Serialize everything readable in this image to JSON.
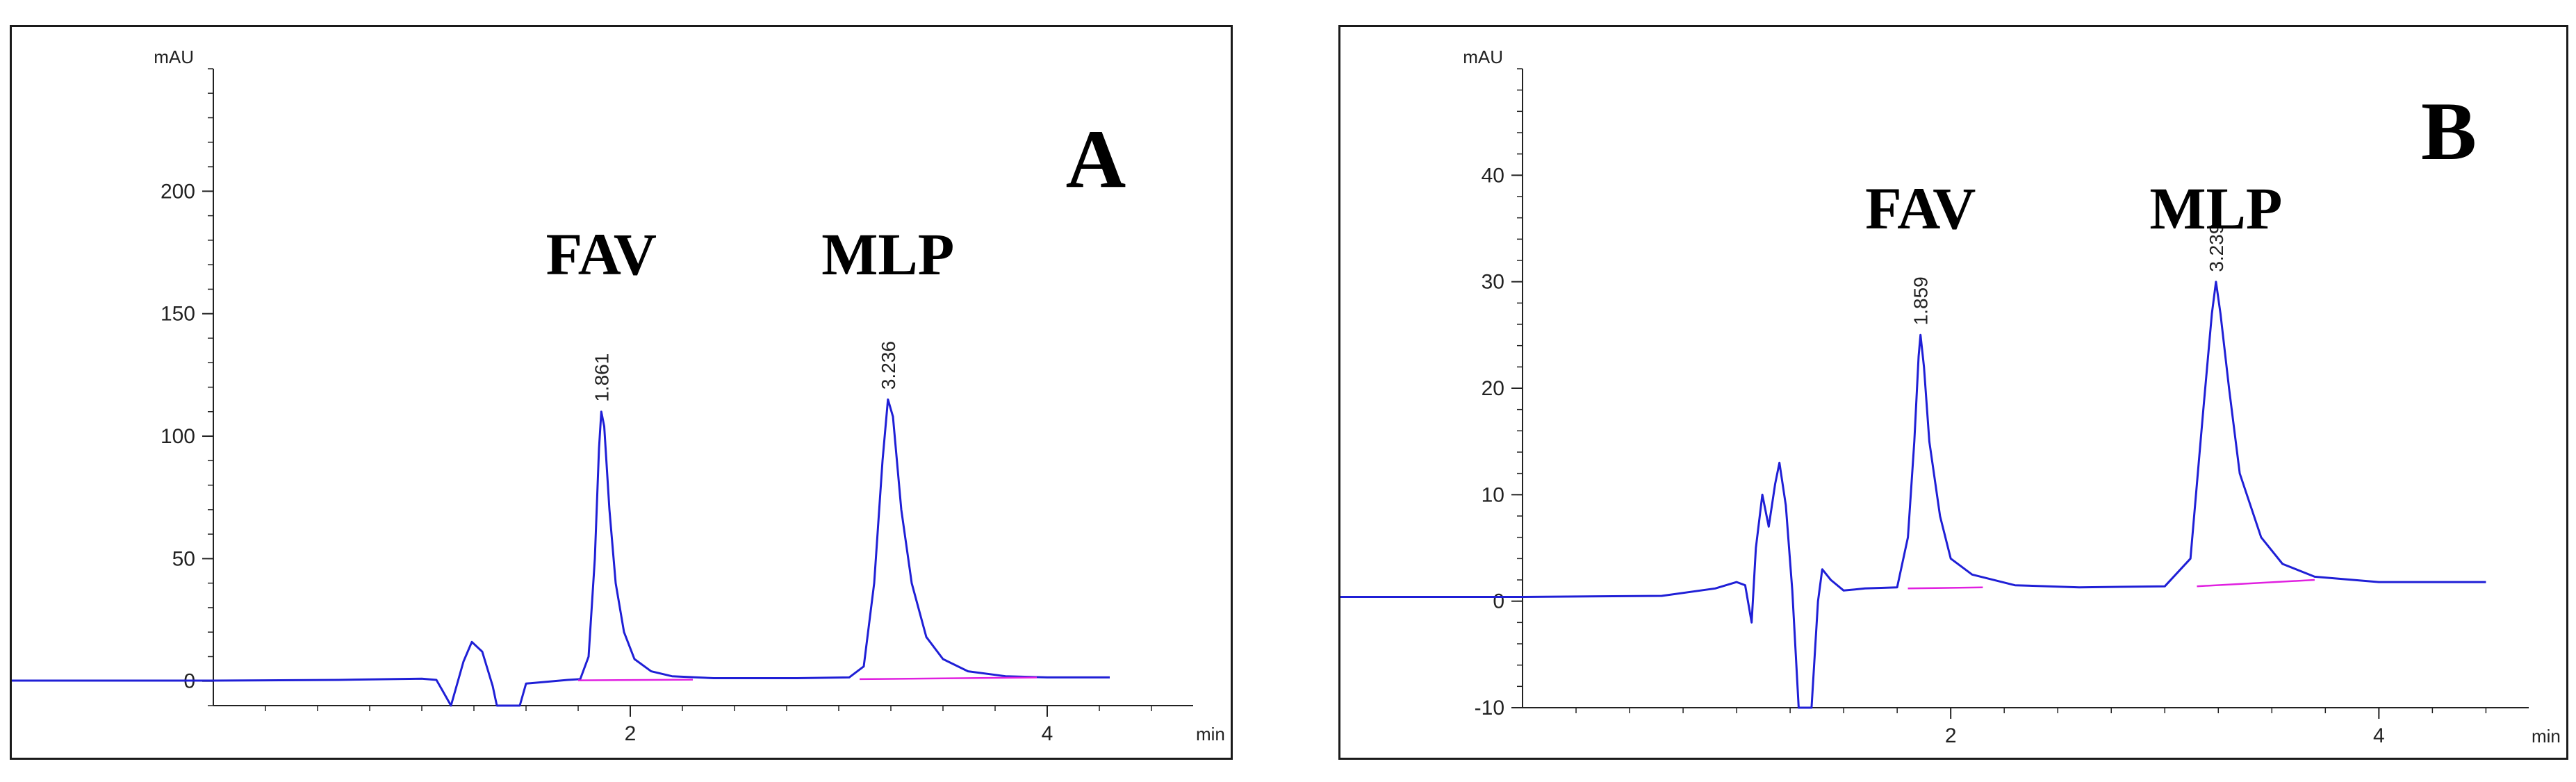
{
  "chart_data": [
    {
      "type": "line",
      "panel": "A",
      "title": "A",
      "xlabel": "min",
      "ylabel": "mAU",
      "xlim": [
        0,
        4.7
      ],
      "ylim": [
        -10,
        250
      ],
      "x_ticks": [
        2,
        4
      ],
      "x_tick_labels": [
        "2",
        "4"
      ],
      "y_ticks": [
        0,
        50,
        100,
        150,
        200
      ],
      "y_tick_labels": [
        "0",
        "50",
        "100",
        "150",
        "200"
      ],
      "peak_names": [
        "FAV",
        "MLP"
      ],
      "peaks": [
        {
          "name": "FAV",
          "rt": 1.861,
          "rt_label": "1.861",
          "height": 110
        },
        {
          "name": "MLP",
          "rt": 3.236,
          "rt_label": "3.236",
          "height": 115
        }
      ],
      "baseline_segments": [
        [
          1.75,
          2.3
        ],
        [
          3.1,
          3.95
        ]
      ],
      "series": [
        {
          "name": "chromatogram",
          "color": "#1f1fd6",
          "x": [
            0.0,
            0.6,
            1.0,
            1.07,
            1.1,
            1.14,
            1.2,
            1.24,
            1.29,
            1.34,
            1.36,
            1.42,
            1.47,
            1.5,
            1.7,
            1.76,
            1.8,
            1.83,
            1.85,
            1.861,
            1.875,
            1.9,
            1.93,
            1.97,
            2.02,
            2.1,
            2.2,
            2.4,
            2.8,
            3.05,
            3.12,
            3.17,
            3.21,
            3.236,
            3.26,
            3.3,
            3.35,
            3.42,
            3.5,
            3.62,
            3.8,
            4.0,
            4.3
          ],
          "y": [
            0.2,
            0.5,
            1.0,
            0.5,
            -4,
            -10,
            8,
            16,
            12,
            -2,
            -10,
            -10,
            -10,
            -1,
            0.5,
            0.8,
            10,
            50,
            95,
            110,
            104,
            70,
            40,
            20,
            9,
            4,
            2,
            1.2,
            1.2,
            1.5,
            6,
            40,
            90,
            115,
            108,
            70,
            40,
            18,
            9,
            4,
            2,
            1.5,
            1.5
          ]
        },
        {
          "name": "baseline",
          "color": "#e020e0",
          "x": [
            1.75,
            2.3,
            3.1,
            3.95
          ],
          "y": [
            0.3,
            0.6,
            0.8,
            1.5
          ]
        }
      ]
    },
    {
      "type": "line",
      "panel": "B",
      "title": "B",
      "xlabel": "min",
      "ylabel": "mAU",
      "xlim": [
        0,
        4.7
      ],
      "ylim": [
        -10,
        50
      ],
      "x_ticks": [
        2,
        4
      ],
      "x_tick_labels": [
        "2",
        "4"
      ],
      "y_ticks": [
        -10,
        0,
        10,
        20,
        30,
        40
      ],
      "y_tick_labels": [
        "-10",
        "0",
        "10",
        "20",
        "30",
        "40"
      ],
      "peak_names": [
        "FAV",
        "MLP"
      ],
      "peaks": [
        {
          "name": "FAV",
          "rt": 1.859,
          "rt_label": "1.859",
          "height": 25
        },
        {
          "name": "MLP",
          "rt": 3.239,
          "rt_label": "3.239",
          "height": 30
        }
      ],
      "baseline_segments": [
        [
          1.8,
          2.15
        ],
        [
          3.15,
          3.7
        ]
      ],
      "series": [
        {
          "name": "chromatogram",
          "color": "#1f1fd6",
          "x": [
            0.0,
            0.65,
            0.9,
            1.0,
            1.04,
            1.07,
            1.09,
            1.12,
            1.15,
            1.18,
            1.2,
            1.23,
            1.26,
            1.29,
            1.31,
            1.33,
            1.35,
            1.38,
            1.4,
            1.44,
            1.5,
            1.6,
            1.75,
            1.8,
            1.83,
            1.85,
            1.859,
            1.875,
            1.9,
            1.95,
            2.0,
            2.1,
            2.3,
            2.6,
            3.0,
            3.12,
            3.18,
            3.22,
            3.239,
            3.26,
            3.3,
            3.35,
            3.45,
            3.55,
            3.7,
            4.0,
            4.5
          ],
          "y": [
            0.4,
            0.5,
            1.2,
            1.8,
            1.5,
            -2,
            5,
            10,
            7,
            11,
            13,
            9,
            1,
            -10,
            -10,
            -10,
            -10,
            0,
            3,
            2,
            1,
            1.2,
            1.3,
            6,
            15,
            23,
            25,
            22,
            15,
            8,
            4,
            2.5,
            1.5,
            1.3,
            1.4,
            4,
            18,
            27,
            30,
            27,
            20,
            12,
            6,
            3.5,
            2.3,
            1.8,
            1.8
          ]
        },
        {
          "name": "baseline",
          "color": "#e020e0",
          "x": [
            1.8,
            2.15,
            3.15,
            3.7
          ],
          "y": [
            1.2,
            1.3,
            1.4,
            2.0
          ]
        }
      ]
    }
  ]
}
